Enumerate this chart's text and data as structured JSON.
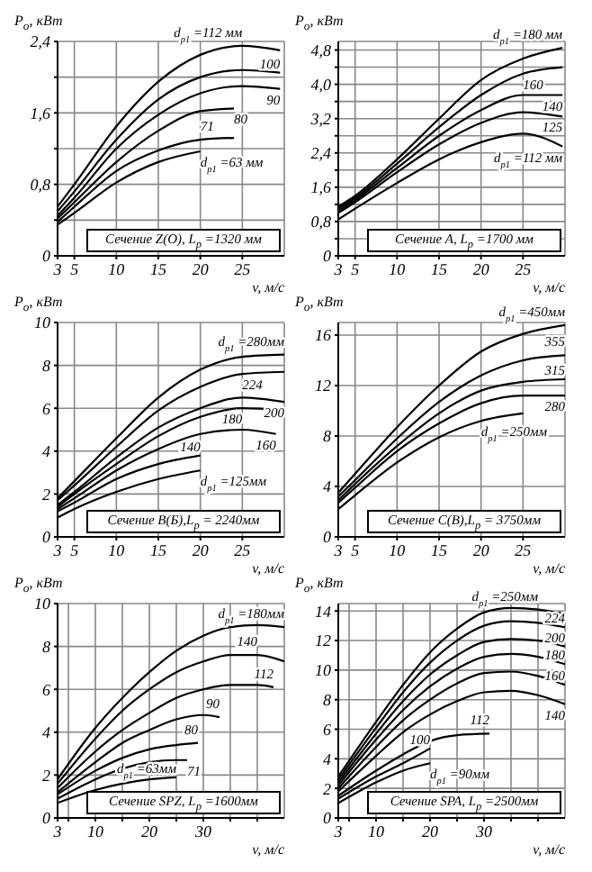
{
  "chart_data": [
    {
      "type": "line",
      "xlabel": "v, м/с",
      "ylabel": "P$_{o}$, кВт",
      "annotations": [
        "Сечение Z(O), L$_{p}$ =1320 мм"
      ],
      "xlim": [
        3,
        30
      ],
      "xticks": [
        3,
        5,
        10,
        15,
        20,
        25
      ],
      "ylim": [
        0,
        2.4
      ],
      "yticks": [
        0,
        {
          "value": 0.4,
          "label": null
        },
        {
          "value": 0.8,
          "label": "0,8"
        },
        {
          "value": 1.2,
          "label": null
        },
        {
          "value": 1.6,
          "label": "1,6"
        },
        {
          "value": 2.0,
          "label": null
        },
        {
          "value": 2.4,
          "label": "2,4"
        }
      ],
      "grid": true,
      "marker": "none",
      "series": [
        {
          "name": "d$_{p1}$ =112 мм",
          "color": "#000000",
          "x": [
            3,
            5,
            10,
            15,
            20,
            25,
            29.5
          ],
          "values": [
            0.55,
            0.8,
            1.45,
            1.95,
            2.25,
            2.35,
            2.3
          ]
        },
        {
          "name": "100",
          "color": "#000000",
          "x": [
            3,
            5,
            10,
            15,
            20,
            25,
            29.5
          ],
          "values": [
            0.5,
            0.72,
            1.3,
            1.75,
            2.0,
            2.08,
            2.05
          ]
        },
        {
          "name": "90",
          "color": "#000000",
          "x": [
            3,
            5,
            10,
            15,
            20,
            25,
            29.5
          ],
          "values": [
            0.45,
            0.65,
            1.2,
            1.58,
            1.82,
            1.9,
            1.87
          ]
        },
        {
          "name": "80",
          "color": "#000000",
          "x": [
            3,
            5,
            10,
            15,
            20,
            24
          ],
          "values": [
            0.42,
            0.6,
            1.05,
            1.4,
            1.62,
            1.65
          ]
        },
        {
          "name": "71",
          "color": "#000000",
          "x": [
            3,
            5,
            10,
            15,
            20,
            24
          ],
          "values": [
            0.38,
            0.55,
            0.95,
            1.18,
            1.3,
            1.32
          ]
        },
        {
          "name": "d$_{p1}$ =63 мм",
          "color": "#000000",
          "x": [
            3,
            5,
            10,
            15,
            20
          ],
          "values": [
            0.35,
            0.48,
            0.82,
            1.05,
            1.17
          ]
        }
      ]
    },
    {
      "type": "line",
      "xlabel": "v, м/с",
      "ylabel": "P$_{o}$, кВт",
      "annotations": [
        "Сечение A, L$_{p}$ =1700 мм"
      ],
      "xlim": [
        3,
        30
      ],
      "xticks": [
        3,
        5,
        10,
        15,
        20,
        25
      ],
      "ylim": [
        0,
        5
      ],
      "yticks": [
        0,
        {
          "value": 0.4,
          "label": null
        },
        {
          "value": 0.8,
          "label": "0,8"
        },
        {
          "value": 1.2,
          "label": null
        },
        {
          "value": 1.6,
          "label": "1,6"
        },
        {
          "value": 2.0,
          "label": null
        },
        {
          "value": 2.4,
          "label": "2,4"
        },
        {
          "value": 2.8,
          "label": null
        },
        {
          "value": 3.2,
          "label": "3,2"
        },
        {
          "value": 3.6,
          "label": null
        },
        {
          "value": 4.0,
          "label": "4,0"
        },
        {
          "value": 4.4,
          "label": null
        },
        {
          "value": 4.8,
          "label": "4,8"
        }
      ],
      "grid": true,
      "marker": "none",
      "series": [
        {
          "name": "d$_{p1}$ =180 мм",
          "color": "#000000",
          "x": [
            3,
            5,
            10,
            15,
            20,
            25,
            29.7
          ],
          "values": [
            1.15,
            1.4,
            2.25,
            3.2,
            4.1,
            4.6,
            4.85
          ]
        },
        {
          "name": "160",
          "color": "#000000",
          "x": [
            3,
            5,
            10,
            15,
            20,
            25,
            29.7
          ],
          "values": [
            1.1,
            1.35,
            2.15,
            3.0,
            3.75,
            4.25,
            4.4
          ]
        },
        {
          "name": "140",
          "color": "#000000",
          "x": [
            3,
            5,
            10,
            15,
            20,
            25,
            29.7
          ],
          "values": [
            1.05,
            1.3,
            2.05,
            2.8,
            3.4,
            3.75,
            3.75
          ]
        },
        {
          "name": "125",
          "color": "#000000",
          "x": [
            3,
            5,
            10,
            15,
            20,
            25,
            29.7
          ],
          "values": [
            1.0,
            1.25,
            1.95,
            2.6,
            3.1,
            3.35,
            3.25
          ]
        },
        {
          "name": "d$_{p1}$ =112 мм",
          "color": "#000000",
          "x": [
            3,
            5,
            10,
            15,
            20,
            25,
            29.7
          ],
          "values": [
            0.85,
            1.1,
            1.7,
            2.25,
            2.65,
            2.85,
            2.55
          ]
        }
      ]
    },
    {
      "type": "line",
      "xlabel": "v, м/с",
      "ylabel": "P$_{o}$, кВт",
      "annotations": [
        "Сечение B(Б),L$_{p}$ = 2240мм"
      ],
      "xlim": [
        3,
        30
      ],
      "xticks": [
        3,
        5,
        10,
        15,
        20,
        25
      ],
      "ylim": [
        0,
        10
      ],
      "yticks": [
        0,
        2,
        4,
        6,
        8,
        10
      ],
      "grid": true,
      "marker": "none",
      "series": [
        {
          "name": "d$_{p1}$ =280мм",
          "color": "#000000",
          "x": [
            3,
            5,
            10,
            15,
            20,
            25,
            30
          ],
          "values": [
            1.8,
            2.6,
            4.6,
            6.5,
            7.8,
            8.4,
            8.5
          ]
        },
        {
          "name": "224",
          "color": "#000000",
          "x": [
            3,
            5,
            10,
            15,
            20,
            25,
            30
          ],
          "values": [
            1.7,
            2.4,
            4.2,
            5.9,
            7.0,
            7.6,
            7.7
          ]
        },
        {
          "name": "200",
          "color": "#000000",
          "x": [
            3,
            5,
            10,
            15,
            20,
            25,
            30
          ],
          "values": [
            1.5,
            2.1,
            3.7,
            5.1,
            6.0,
            6.5,
            6.3
          ]
        },
        {
          "name": "180",
          "color": "#000000",
          "x": [
            3,
            5,
            10,
            15,
            20,
            25,
            30
          ],
          "values": [
            1.4,
            2.0,
            3.4,
            4.7,
            5.6,
            6.0,
            5.9
          ]
        },
        {
          "name": "160",
          "color": "#000000",
          "x": [
            3,
            5,
            10,
            15,
            20,
            25,
            29
          ],
          "values": [
            1.3,
            1.8,
            3.1,
            4.1,
            4.8,
            5.0,
            4.8
          ]
        },
        {
          "name": "140",
          "color": "#000000",
          "x": [
            3,
            5,
            10,
            15,
            20
          ],
          "values": [
            1.2,
            1.6,
            2.7,
            3.4,
            3.8
          ]
        },
        {
          "name": "d$_{p1}$ =125мм",
          "color": "#000000",
          "x": [
            3,
            5,
            10,
            15,
            20
          ],
          "values": [
            0.9,
            1.3,
            2.1,
            2.7,
            3.1
          ]
        }
      ]
    },
    {
      "type": "line",
      "xlabel": "v, м/с",
      "ylabel": "P$_{o}$, кВт",
      "annotations": [
        "Сечение C(B),L$_{p}$ = 3750мм"
      ],
      "xlim": [
        3,
        30
      ],
      "xticks": [
        3,
        5,
        10,
        15,
        20,
        25
      ],
      "ylim": [
        0,
        17
      ],
      "yticks": [
        0,
        4,
        8,
        12,
        16
      ],
      "grid": true,
      "marker": "none",
      "series": [
        {
          "name": "d$_{p1}$ =450мм",
          "color": "#000000",
          "x": [
            3,
            5,
            10,
            15,
            20,
            25,
            30
          ],
          "values": [
            3.5,
            5.0,
            8.7,
            12.0,
            14.7,
            16.1,
            16.8
          ]
        },
        {
          "name": "355",
          "color": "#000000",
          "x": [
            3,
            5,
            10,
            15,
            20,
            25,
            30
          ],
          "values": [
            3.2,
            4.5,
            7.8,
            10.7,
            12.8,
            14.0,
            14.4
          ]
        },
        {
          "name": "315",
          "color": "#000000",
          "x": [
            3,
            5,
            10,
            15,
            20,
            25,
            30
          ],
          "values": [
            2.9,
            4.2,
            7.2,
            9.8,
            11.6,
            12.3,
            12.5
          ]
        },
        {
          "name": "280",
          "color": "#000000",
          "x": [
            3,
            5,
            10,
            15,
            20,
            25,
            30
          ],
          "values": [
            2.7,
            3.9,
            6.8,
            9.0,
            10.6,
            11.2,
            11.2
          ]
        },
        {
          "name": "d$_{p1}$ =250мм",
          "color": "#000000",
          "x": [
            3,
            5,
            10,
            15,
            20,
            25
          ],
          "values": [
            2.2,
            3.3,
            5.9,
            7.9,
            9.2,
            9.8
          ]
        }
      ]
    },
    {
      "type": "line",
      "xlabel": "v, м/с",
      "ylabel": "P$_{o}$, кВт",
      "annotations": [
        "Сечение SPZ, L$_{p}$ =1600мм"
      ],
      "xlim": [
        3,
        45
      ],
      "xticks": [
        3,
        {
          "value": 5,
          "label": null
        },
        10,
        {
          "value": 15,
          "label": null
        },
        20,
        {
          "value": 25,
          "label": null
        },
        30,
        {
          "value": 35,
          "label": null
        },
        {
          "value": 40,
          "label": null
        }
      ],
      "ylim": [
        0,
        10
      ],
      "yticks": [
        0,
        2,
        4,
        6,
        8,
        10
      ],
      "grid": true,
      "marker": "none",
      "series": [
        {
          "name": "d$_{p1}$ =180мм",
          "color": "#000000",
          "x": [
            3,
            10,
            15,
            20,
            25,
            30,
            35,
            40,
            45
          ],
          "values": [
            1.8,
            4.2,
            5.6,
            6.8,
            7.8,
            8.5,
            8.9,
            9.0,
            8.9
          ]
        },
        {
          "name": "140",
          "color": "#000000",
          "x": [
            3,
            10,
            15,
            20,
            25,
            30,
            35,
            40,
            45
          ],
          "values": [
            1.6,
            3.7,
            5.0,
            6.0,
            6.8,
            7.3,
            7.6,
            7.6,
            7.3
          ]
        },
        {
          "name": "112",
          "color": "#000000",
          "x": [
            3,
            10,
            15,
            20,
            25,
            30,
            35,
            40,
            43
          ],
          "values": [
            1.4,
            3.1,
            4.1,
            4.9,
            5.6,
            6.0,
            6.2,
            6.2,
            6.1
          ]
        },
        {
          "name": "90",
          "color": "#000000",
          "x": [
            3,
            10,
            15,
            20,
            25,
            30,
            33
          ],
          "values": [
            1.2,
            2.6,
            3.5,
            4.1,
            4.6,
            4.8,
            4.7
          ]
        },
        {
          "name": "80",
          "color": "#000000",
          "x": [
            3,
            10,
            15,
            20,
            25,
            29
          ],
          "values": [
            1.1,
            2.2,
            2.8,
            3.2,
            3.4,
            3.5
          ]
        },
        {
          "name": "71",
          "color": "#000000",
          "x": [
            3,
            10,
            15,
            20,
            25,
            27
          ],
          "values": [
            0.9,
            1.8,
            2.3,
            2.6,
            2.7,
            2.7
          ]
        },
        {
          "name": "d$_{p1}$ =63мм",
          "color": "#000000",
          "x": [
            3,
            10,
            15,
            20,
            25
          ],
          "values": [
            0.7,
            1.3,
            1.6,
            1.8,
            1.9
          ]
        }
      ]
    },
    {
      "type": "line",
      "xlabel": "v, м/с",
      "ylabel": "P$_{o}$, кВт",
      "annotations": [
        "Сечение SPA, L$_{p}$ =2500мм"
      ],
      "xlim": [
        3,
        45
      ],
      "xticks": [
        3,
        {
          "value": 5,
          "label": null
        },
        10,
        {
          "value": 15,
          "label": null
        },
        20,
        {
          "value": 25,
          "label": null
        },
        30,
        {
          "value": 35,
          "label": null
        },
        {
          "value": 40,
          "label": null
        }
      ],
      "ylim": [
        0,
        14.5
      ],
      "yticks": [
        0,
        2,
        4,
        6,
        8,
        10,
        12,
        14
      ],
      "grid": true,
      "marker": "none",
      "series": [
        {
          "name": "d$_{p1}$ =250мм",
          "color": "#000000",
          "x": [
            3,
            10,
            15,
            20,
            25,
            30,
            35,
            40,
            45
          ],
          "values": [
            2.8,
            6.5,
            9.0,
            11.2,
            12.8,
            13.9,
            14.2,
            14.1,
            13.8
          ]
        },
        {
          "name": "224",
          "color": "#000000",
          "x": [
            3,
            10,
            15,
            20,
            25,
            30,
            35,
            40,
            45
          ],
          "values": [
            2.6,
            6.1,
            8.5,
            10.5,
            12.0,
            13.0,
            13.3,
            13.2,
            12.9
          ]
        },
        {
          "name": "200",
          "color": "#000000",
          "x": [
            3,
            10,
            15,
            20,
            25,
            30,
            35,
            40,
            45
          ],
          "values": [
            2.4,
            5.7,
            7.9,
            9.7,
            11.0,
            11.9,
            12.1,
            12.0,
            11.6
          ]
        },
        {
          "name": "180",
          "color": "#000000",
          "x": [
            3,
            10,
            15,
            20,
            25,
            30,
            35,
            40,
            45
          ],
          "values": [
            2.2,
            5.3,
            7.3,
            8.9,
            10.1,
            10.9,
            11.1,
            10.9,
            10.4
          ]
        },
        {
          "name": "160",
          "color": "#000000",
          "x": [
            3,
            10,
            15,
            20,
            25,
            30,
            35,
            40,
            45
          ],
          "values": [
            2.0,
            4.8,
            6.6,
            8.0,
            9.1,
            9.8,
            9.9,
            9.6,
            9.0
          ]
        },
        {
          "name": "140",
          "color": "#000000",
          "x": [
            3,
            10,
            15,
            20,
            25,
            30,
            35,
            40,
            45
          ],
          "values": [
            1.8,
            4.2,
            5.8,
            7.0,
            7.9,
            8.5,
            8.6,
            8.3,
            7.7
          ]
        },
        {
          "name": "112",
          "color": "#000000",
          "x": [
            3,
            10,
            15,
            20,
            25,
            31
          ],
          "values": [
            1.5,
            3.2,
            4.3,
            5.2,
            5.6,
            5.7
          ]
        },
        {
          "name": "100",
          "color": "#000000",
          "x": [
            3,
            10,
            15,
            20
          ],
          "values": [
            1.3,
            2.8,
            3.7,
            4.7
          ]
        },
        {
          "name": "d$_{p1}$ =90мм",
          "color": "#000000",
          "x": [
            3,
            10,
            15,
            20
          ],
          "values": [
            1.0,
            2.4,
            3.2,
            3.7
          ]
        }
      ]
    }
  ]
}
